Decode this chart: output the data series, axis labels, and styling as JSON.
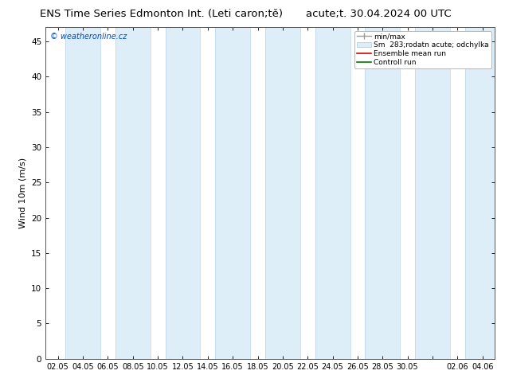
{
  "title_left": "ENS Time Series Edmonton Int. (Leti caron;tě)",
  "title_right": "acute;t. 30.04.2024 00 UTC",
  "ylabel": "Wind 10m (m/s)",
  "watermark": "© weatheronline.cz",
  "ylim": [
    0,
    47
  ],
  "yticks": [
    0,
    5,
    10,
    15,
    20,
    25,
    30,
    35,
    40,
    45
  ],
  "x_labels": [
    "02.05",
    "04.05",
    "06.05",
    "08.05",
    "10.05",
    "12.05",
    "14.05",
    "16.05",
    "18.05",
    "20.05",
    "22.05",
    "24.05",
    "26.05",
    "28.05",
    "30.05",
    "",
    "02.06",
    "04.06"
  ],
  "stripe_color": "#ddeef8",
  "stripe_edge_color": "#b8d4e8",
  "legend_entries": [
    "min/max",
    "Sm  283;rodatn acute; odchylka",
    "Ensemble mean run",
    "Controll run"
  ],
  "legend_colors": [
    "#999999",
    "#c8dff0",
    "#dd0000",
    "#007700"
  ],
  "bg_color": "#ffffff",
  "title_fontsize": 9.5,
  "axis_fontsize": 8,
  "tick_fontsize": 7.5
}
